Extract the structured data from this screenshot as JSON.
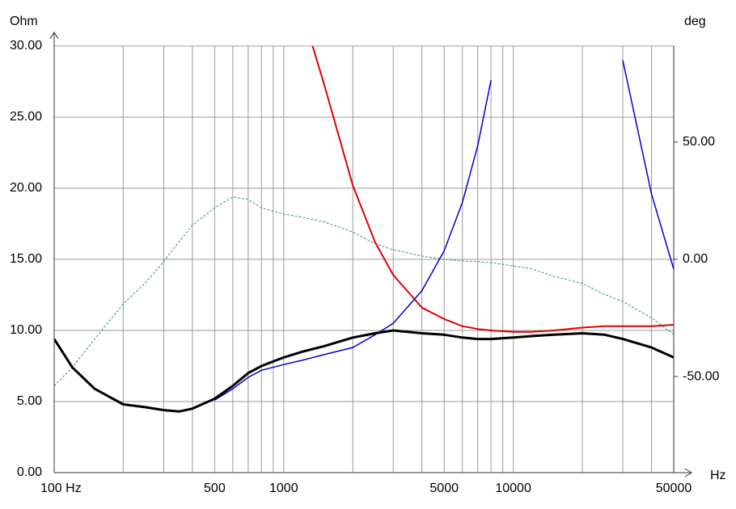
{
  "chart_data": {
    "type": "line",
    "xlabel": "Hz",
    "ylabel": "Ohm",
    "y2label": "deg",
    "xscale": "log",
    "grid": true,
    "xlim": [
      100,
      50000
    ],
    "xticks": [
      {
        "value": 100,
        "label": "100 Hz"
      },
      500,
      1000,
      5000,
      10000,
      50000
    ],
    "xgrid": [
      200,
      300,
      400,
      600,
      700,
      800,
      900,
      2000,
      3000,
      4000,
      6000,
      7000,
      8000,
      9000,
      20000,
      30000,
      40000
    ],
    "ylim": [
      0,
      30
    ],
    "yticks": [
      {
        "value": 0,
        "label": "0.00"
      },
      {
        "value": 5,
        "label": "5.00"
      },
      {
        "value": 10,
        "label": "10.00"
      },
      {
        "value": 15,
        "label": "15.00"
      },
      {
        "value": 20,
        "label": "20.00"
      },
      {
        "value": 25,
        "label": "25.00"
      },
      {
        "value": 30,
        "label": "30.00"
      }
    ],
    "y2lim": [
      -91,
      91
    ],
    "y2ticks": [
      {
        "value": -50,
        "label": "-50.00"
      },
      {
        "value": 0,
        "label": "0.00"
      },
      {
        "value": 50,
        "label": "50.00"
      }
    ],
    "x": [
      100,
      120,
      150,
      200,
      250,
      300,
      350,
      400,
      500,
      600,
      700,
      800,
      1000,
      1200,
      1500,
      2000,
      2500,
      3000,
      4000,
      5000,
      6000,
      7000,
      8000,
      10000,
      12000,
      15000,
      20000,
      25000,
      30000,
      40000,
      50000
    ],
    "series": [
      {
        "color": "#3a8c8c",
        "style": "dashed",
        "line_width": 1,
        "axis": "y2",
        "values": [
          -54,
          -46,
          -34,
          -19,
          -10,
          -1,
          7.6,
          14.5,
          22,
          26.6,
          25.5,
          22,
          19.3,
          18,
          16,
          11.7,
          6.6,
          4.1,
          1.4,
          0,
          -0.7,
          -1,
          -1.4,
          -2.8,
          -4,
          -7.2,
          -10.3,
          -15,
          -18,
          -25,
          -32
        ]
      },
      {
        "color": "#e00000",
        "style": "solid",
        "line_width": 2,
        "values": [
          null,
          null,
          null,
          null,
          null,
          null,
          null,
          null,
          null,
          null,
          null,
          null,
          null,
          32.5,
          27.3,
          20.2,
          16.2,
          13.9,
          11.6,
          10.8,
          10.3,
          10.1,
          10.0,
          9.9,
          9.9,
          10.0,
          10.2,
          10.3,
          10.3,
          10.3,
          10.4
        ]
      },
      {
        "color": "#0000cc",
        "style": "solid",
        "line_width": 1.5,
        "values": [
          null,
          null,
          null,
          null,
          null,
          null,
          null,
          null,
          5.1,
          5.9,
          6.7,
          7.2,
          7.6,
          7.9,
          8.3,
          8.8,
          9.7,
          10.5,
          12.8,
          15.6,
          19,
          23,
          27.6,
          null,
          null,
          null,
          null,
          null,
          29,
          19.6,
          14.3
        ]
      },
      {
        "color": "#000000",
        "style": "solid",
        "line_width": 3,
        "values": [
          9.4,
          7.4,
          5.9,
          4.8,
          4.6,
          4.4,
          4.3,
          4.5,
          5.2,
          6.1,
          7.0,
          7.5,
          8.1,
          8.5,
          8.9,
          9.5,
          9.8,
          10.0,
          9.8,
          9.7,
          9.5,
          9.4,
          9.4,
          9.5,
          9.6,
          9.7,
          9.8,
          9.7,
          9.4,
          8.8,
          8.1
        ]
      }
    ]
  }
}
